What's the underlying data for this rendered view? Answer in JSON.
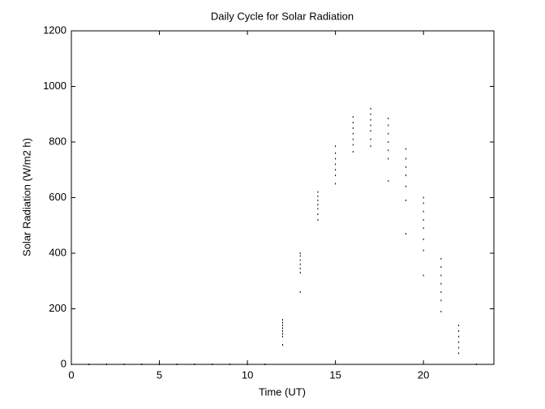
{
  "chart_data": {
    "type": "scatter",
    "title": "Daily Cycle for Solar Radiation",
    "x_label": "Time (UT)",
    "y_label": "Solar Radiation (W/m2 h)",
    "x": [
      0,
      1,
      2,
      3,
      4,
      5,
      6,
      7,
      8,
      9,
      10,
      11,
      12,
      12,
      12,
      12,
      12,
      12,
      12,
      12,
      13,
      13,
      13,
      13,
      13,
      13,
      13,
      14,
      14,
      14,
      14,
      14,
      14,
      14,
      15,
      15,
      15,
      15,
      15,
      15,
      15,
      16,
      16,
      16,
      16,
      16,
      16,
      16,
      17,
      17,
      17,
      17,
      17,
      17,
      17,
      18,
      18,
      18,
      18,
      18,
      18,
      18,
      19,
      19,
      19,
      19,
      19,
      19,
      19,
      20,
      20,
      20,
      20,
      20,
      20,
      20,
      20,
      21,
      21,
      21,
      21,
      21,
      21,
      21,
      22,
      22,
      22,
      22,
      22,
      22,
      23
    ],
    "values": [
      0,
      0,
      0,
      0,
      0,
      0,
      0,
      0,
      0,
      0,
      0,
      0,
      70,
      100,
      110,
      120,
      130,
      140,
      150,
      160,
      260,
      330,
      345,
      360,
      375,
      390,
      400,
      520,
      540,
      560,
      575,
      590,
      605,
      620,
      650,
      680,
      700,
      720,
      740,
      760,
      785,
      765,
      790,
      810,
      830,
      850,
      870,
      890,
      785,
      810,
      840,
      860,
      880,
      900,
      920,
      660,
      740,
      770,
      800,
      830,
      860,
      885,
      470,
      590,
      640,
      680,
      710,
      740,
      775,
      320,
      410,
      450,
      490,
      520,
      550,
      580,
      600,
      190,
      230,
      260,
      290,
      320,
      350,
      380,
      40,
      60,
      80,
      100,
      120,
      140,
      0
    ],
    "color": "#000000",
    "xlim": [
      0,
      24
    ],
    "xticks": [
      0,
      5,
      10,
      15,
      20
    ],
    "ylim": [
      0,
      1200
    ],
    "yticks": [
      0,
      200,
      400,
      600,
      800,
      1000,
      1200
    ]
  }
}
